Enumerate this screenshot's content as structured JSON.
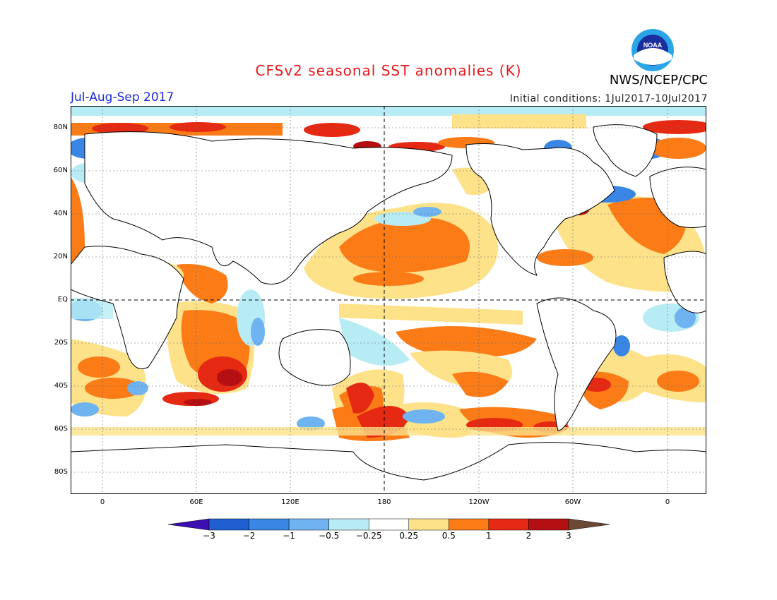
{
  "header": {
    "title": "CFSv2 seasonal SST anomalies (K)",
    "organization": "NWS/NCEP/CPC",
    "season": "Jul-Aug-Sep 2017",
    "initial_conditions": "Initial conditions:  1Jul2017-10Jul2017",
    "logo_text": "NOAA"
  },
  "map": {
    "latitude_labels": [
      "80N",
      "60N",
      "40N",
      "20N",
      "EQ",
      "20S",
      "40S",
      "60S",
      "80S"
    ],
    "longitude_labels": [
      "0",
      "60E",
      "120E",
      "180",
      "120W",
      "60W",
      "0"
    ]
  },
  "colorbar": {
    "labels": [
      "-3",
      "-2",
      "-1",
      "-0.5",
      "-0.25",
      "0.25",
      "0.5",
      "1",
      "2",
      "3"
    ],
    "colors": [
      "#3b0fb0",
      "#1f5fd1",
      "#3a86e5",
      "#6fb3f0",
      "#b7ecf5",
      "#ffffff",
      "#fde28a",
      "#fb7b17",
      "#e62912",
      "#b40f12",
      "#6b4935"
    ]
  },
  "colors": {
    "title": "#e5191c",
    "season": "#1b2bd9",
    "land": "#ffffff",
    "ocean_neutral": "#ffffff"
  }
}
